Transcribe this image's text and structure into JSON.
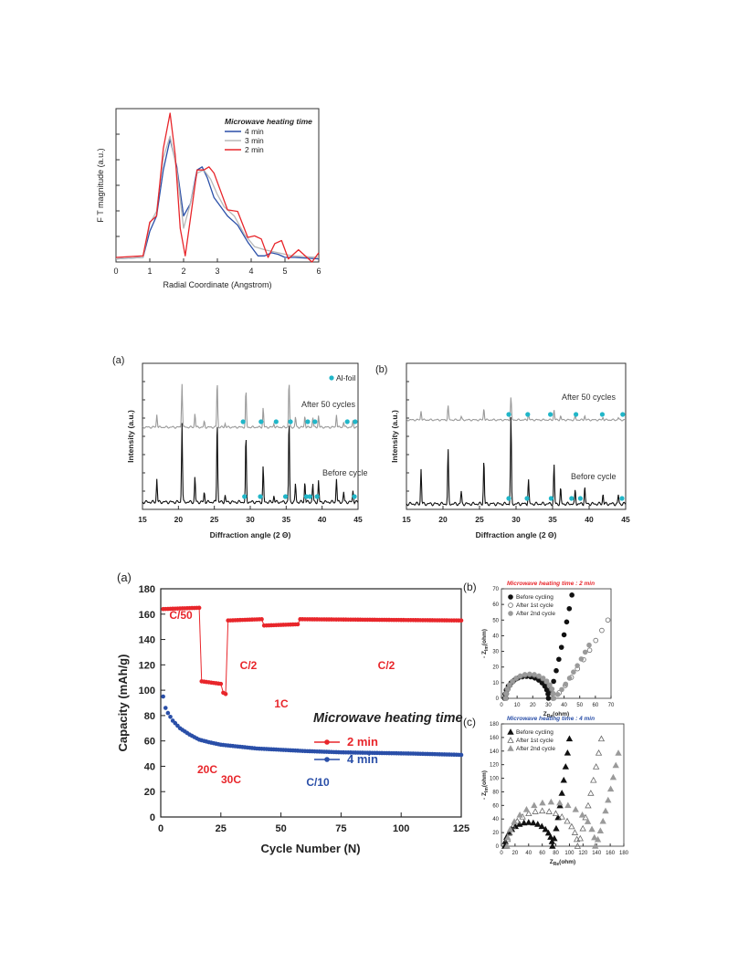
{
  "colors": {
    "red": "#e8262b",
    "blue": "#2a4fa8",
    "gray": "#9a9a9a",
    "black": "#111111",
    "lightgray": "#b8b8b8",
    "cyan": "#21b6c8"
  },
  "chart_data": [
    {
      "id": "ft",
      "type": "line",
      "xlabel": "Radial Coordinate (Angstrom)",
      "ylabel": "F T magnitude (a.u.)",
      "xlim": [
        0,
        6
      ],
      "ylim": [
        0,
        1
      ],
      "xticks": [
        "0",
        "1",
        "2",
        "3",
        "4",
        "5",
        "6"
      ],
      "legend_title": "Microwave heating time",
      "legend_position": "top-right",
      "series": [
        {
          "name": "4 min",
          "color": "#2a4fa8",
          "x": [
            0,
            0.8,
            1.0,
            1.2,
            1.4,
            1.6,
            1.8,
            2.0,
            2.2,
            2.4,
            2.55,
            2.7,
            2.9,
            3.1,
            3.3,
            3.6,
            3.9,
            4.2,
            4.4,
            4.6,
            4.8,
            5.0,
            5.3,
            6.0
          ],
          "y": [
            0.02,
            0.03,
            0.2,
            0.3,
            0.6,
            0.8,
            0.62,
            0.3,
            0.38,
            0.6,
            0.62,
            0.55,
            0.42,
            0.36,
            0.3,
            0.24,
            0.13,
            0.04,
            0.04,
            0.06,
            0.05,
            0.03,
            0.03,
            0.02
          ]
        },
        {
          "name": "3 min",
          "color": "#b8b8b8",
          "x": [
            0,
            0.8,
            1.0,
            1.2,
            1.4,
            1.6,
            1.8,
            2.0,
            2.2,
            2.4,
            2.6,
            2.8,
            3.0,
            3.2,
            3.5,
            3.8,
            4.1,
            4.4,
            4.8,
            5.2,
            6.0
          ],
          "y": [
            0.02,
            0.03,
            0.25,
            0.33,
            0.68,
            0.82,
            0.6,
            0.22,
            0.38,
            0.58,
            0.6,
            0.54,
            0.44,
            0.36,
            0.3,
            0.18,
            0.1,
            0.08,
            0.06,
            0.04,
            0.03
          ]
        },
        {
          "name": "2 min",
          "color": "#e8262b",
          "x": [
            0,
            0.8,
            1.0,
            1.2,
            1.4,
            1.6,
            1.75,
            1.9,
            2.05,
            2.2,
            2.4,
            2.6,
            2.75,
            2.9,
            3.1,
            3.3,
            3.6,
            3.9,
            4.1,
            4.3,
            4.5,
            4.7,
            4.9,
            5.1,
            5.4,
            5.8,
            6.0
          ],
          "y": [
            0.03,
            0.04,
            0.26,
            0.3,
            0.74,
            0.97,
            0.7,
            0.22,
            0.04,
            0.28,
            0.6,
            0.6,
            0.62,
            0.58,
            0.46,
            0.34,
            0.33,
            0.16,
            0.17,
            0.15,
            0.03,
            0.12,
            0.14,
            0.02,
            0.08,
            0.0,
            0.06
          ]
        }
      ]
    },
    {
      "id": "xrd-a",
      "panel_label": "(a)",
      "type": "line",
      "xlabel": "Diffraction angle (2 Θ)",
      "ylabel": "Intensity (a.u.)",
      "xlim": [
        15,
        45
      ],
      "xticks": [
        "15",
        "20",
        "25",
        "30",
        "35",
        "40",
        "45"
      ],
      "legend": "Al-foil",
      "annotations": [
        "After 50 cycles",
        "Before cycle"
      ],
      "peaks": [
        [
          17.0,
          0.28
        ],
        [
          20.5,
          0.95
        ],
        [
          22.3,
          0.3
        ],
        [
          23.6,
          0.12
        ],
        [
          25.4,
          1.0
        ],
        [
          26.5,
          0.08
        ],
        [
          29.4,
          0.8
        ],
        [
          31.8,
          0.42
        ],
        [
          33.3,
          0.08
        ],
        [
          35.4,
          1.0
        ],
        [
          36.3,
          0.22
        ],
        [
          37.6,
          0.25
        ],
        [
          38.7,
          0.22
        ],
        [
          39.5,
          0.25
        ],
        [
          42.0,
          0.28
        ],
        [
          43.0,
          0.12
        ],
        [
          44.3,
          0.14
        ]
      ],
      "series": [
        {
          "name": "After 50 cycles",
          "color": "#9a9a9a",
          "peak_scale": 0.85
        },
        {
          "name": "Before cycle",
          "color": "#111111",
          "peak_scale": 1.0
        }
      ],
      "al_foil_x": [
        [
          29.0,
          31.5,
          33.6,
          35.6,
          38.0,
          39.0,
          43.5,
          44.6
        ],
        [
          29.2,
          31.4,
          34.9,
          37.8,
          38.3,
          39.3,
          44.5
        ]
      ]
    },
    {
      "id": "xrd-b",
      "panel_label": "(b)",
      "type": "line",
      "xlabel": "Diffraction angle (2 Θ)",
      "ylabel": "Intensity (a.u.)",
      "xlim": [
        15,
        45
      ],
      "xticks": [
        "15",
        "20",
        "25",
        "30",
        "35",
        "40",
        "45"
      ],
      "annotations": [
        "After 50 cycles",
        "Before cycle"
      ],
      "peaks": [
        [
          17.0,
          0.4
        ],
        [
          20.7,
          0.62
        ],
        [
          22.5,
          0.14
        ],
        [
          25.6,
          0.52
        ],
        [
          29.3,
          1.0
        ],
        [
          31.7,
          0.28
        ],
        [
          35.2,
          0.45
        ],
        [
          36.1,
          0.18
        ],
        [
          38.1,
          0.16
        ],
        [
          39.4,
          0.2
        ],
        [
          41.9,
          0.12
        ],
        [
          44.0,
          0.1
        ]
      ],
      "series": [
        {
          "name": "After 50 cycles",
          "color": "#9a9a9a",
          "peak_scale": 0.48
        },
        {
          "name": "Before cycle",
          "color": "#111111",
          "peak_scale": 1.0
        }
      ],
      "al_foil_x": [
        [
          29.0,
          31.6,
          34.7,
          38.2,
          41.8,
          44.6
        ],
        [
          29.0,
          31.5,
          34.8,
          37.6,
          38.8,
          44.5
        ]
      ]
    },
    {
      "id": "cycle",
      "panel_label": "(a)",
      "type": "scatter",
      "xlabel": "Cycle Number (N)",
      "ylabel": "Capacity (mAh/g)",
      "xlim": [
        0,
        125
      ],
      "ylim": [
        0,
        180
      ],
      "xticks": [
        0,
        25,
        50,
        75,
        100,
        125
      ],
      "yticks": [
        0,
        20,
        40,
        60,
        80,
        100,
        120,
        140,
        160,
        180
      ],
      "legend_title": "Microwave heating time",
      "legend_position": "center-right",
      "rate_labels": [
        "C/50",
        "20C",
        "30C",
        "C/2",
        "1C",
        "C/2",
        "C/10"
      ],
      "series": [
        {
          "name": "2 min",
          "color": "#e8262b",
          "segments": [
            {
              "from": 1,
              "to": 16,
              "y0": 164,
              "y1": 165
            },
            {
              "from": 17,
              "to": 25,
              "y0": 107,
              "y1": 105
            },
            {
              "from": 26,
              "to": 27,
              "y0": 98,
              "y1": 97
            },
            {
              "from": 28,
              "to": 42,
              "y0": 155,
              "y1": 156
            },
            {
              "from": 43,
              "to": 57,
              "y0": 151,
              "y1": 152
            },
            {
              "from": 58,
              "to": 125,
              "y0": 156,
              "y1": 155
            }
          ]
        },
        {
          "name": "4 min",
          "color": "#2a4fa8",
          "x": [
            1,
            2,
            3,
            5,
            8,
            12,
            16,
            20,
            25,
            30,
            40,
            50,
            60,
            75,
            90,
            105,
            115,
            125
          ],
          "y": [
            95,
            86,
            82,
            76,
            70,
            65,
            61,
            59,
            57,
            56,
            54,
            53,
            52,
            51,
            50.5,
            50,
            49.5,
            49
          ]
        }
      ]
    },
    {
      "id": "eis-b",
      "panel_label": "(b)",
      "type": "scatter",
      "title": "Microwave heating time : 2 min",
      "xlabel": "Z",
      "xlabel_sub": "Re",
      "xlabel_unit": "(ohm)",
      "ylabel": "- Z",
      "ylabel_sub": "Im",
      "ylabel_unit": "(ohm)",
      "xlim": [
        0,
        70
      ],
      "ylim": [
        0,
        70
      ],
      "xticks": [
        0,
        10,
        20,
        30,
        40,
        50,
        60,
        70
      ],
      "yticks": [
        0,
        10,
        20,
        30,
        40,
        50,
        60,
        70
      ],
      "series": [
        {
          "name": "Before cycling",
          "marker": "filled-circle",
          "color": "#111111",
          "r": 14,
          "xs": 2,
          "xe": 30,
          "tail_to": [
            45,
            66
          ]
        },
        {
          "name": "After 1st cycle",
          "marker": "open-circle",
          "color": "#6a6a6a",
          "r": 15,
          "xs": 3,
          "xe": 33,
          "tail_to": [
            68,
            50
          ]
        },
        {
          "name": "After 2nd cycle",
          "marker": "filled-circle",
          "color": "#9a9a9a",
          "r": 15.5,
          "xs": 2.5,
          "xe": 33.5,
          "tail_to": [
            56,
            34
          ]
        }
      ]
    },
    {
      "id": "eis-c",
      "panel_label": "(c)",
      "type": "scatter",
      "title": "Microwave heating time : 4 min",
      "xlabel": "Z",
      "xlabel_sub": "Re",
      "xlabel_unit": "(ohm)",
      "ylabel": "- Z",
      "ylabel_sub": "Im",
      "ylabel_unit": "(ohm)",
      "xlim": [
        0,
        180
      ],
      "ylim": [
        0,
        180
      ],
      "xticks": [
        0,
        20,
        40,
        60,
        80,
        100,
        120,
        140,
        160,
        180
      ],
      "yticks": [
        0,
        20,
        40,
        60,
        80,
        100,
        120,
        140,
        160,
        180
      ],
      "series": [
        {
          "name": "Before cycling",
          "marker": "filled-triangle",
          "color": "#111111",
          "r": 35,
          "xs": 5,
          "xe": 75,
          "tail_to": [
            100,
            158
          ]
        },
        {
          "name": "After 1st cycle",
          "marker": "open-triangle",
          "color": "#6a6a6a",
          "r": 52,
          "xs": 8,
          "xe": 112,
          "tail_to": [
            147,
            158
          ]
        },
        {
          "name": "After 2nd cycle",
          "marker": "filled-triangle",
          "color": "#9a9a9a",
          "r": 65,
          "xs": 8,
          "xe": 138,
          "tail_to": [
            172,
            137
          ]
        }
      ]
    }
  ]
}
